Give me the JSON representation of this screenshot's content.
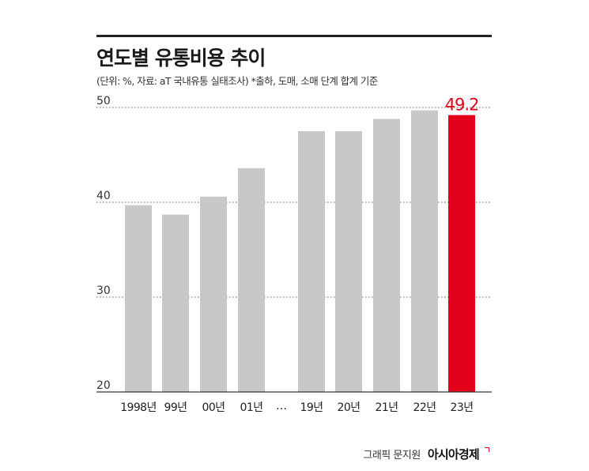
{
  "chart_data": {
    "type": "bar",
    "title": "연도별 유통비용 추이",
    "subtitle": "(단위: %, 자료: aT 국내유통 실태조사) *출하, 도매, 소매 단계 합계 기준",
    "categories": [
      "1998년",
      "99년",
      "00년",
      "01년",
      "19년",
      "20년",
      "21년",
      "22년",
      "23년"
    ],
    "values": [
      39.7,
      38.7,
      40.6,
      43.6,
      47.5,
      47.5,
      48.8,
      49.7,
      49.2
    ],
    "gap_label": "…",
    "highlight": {
      "index": 8,
      "label": "49.2",
      "color": "#e3001b"
    },
    "bar_color": "#c8c8c8",
    "ylim": [
      20,
      50
    ],
    "yticks": [
      20,
      30,
      40,
      50
    ],
    "grid": "dotted-horizontal"
  },
  "credit": {
    "text": "그래픽 문지원",
    "brand": "아시아경제"
  }
}
